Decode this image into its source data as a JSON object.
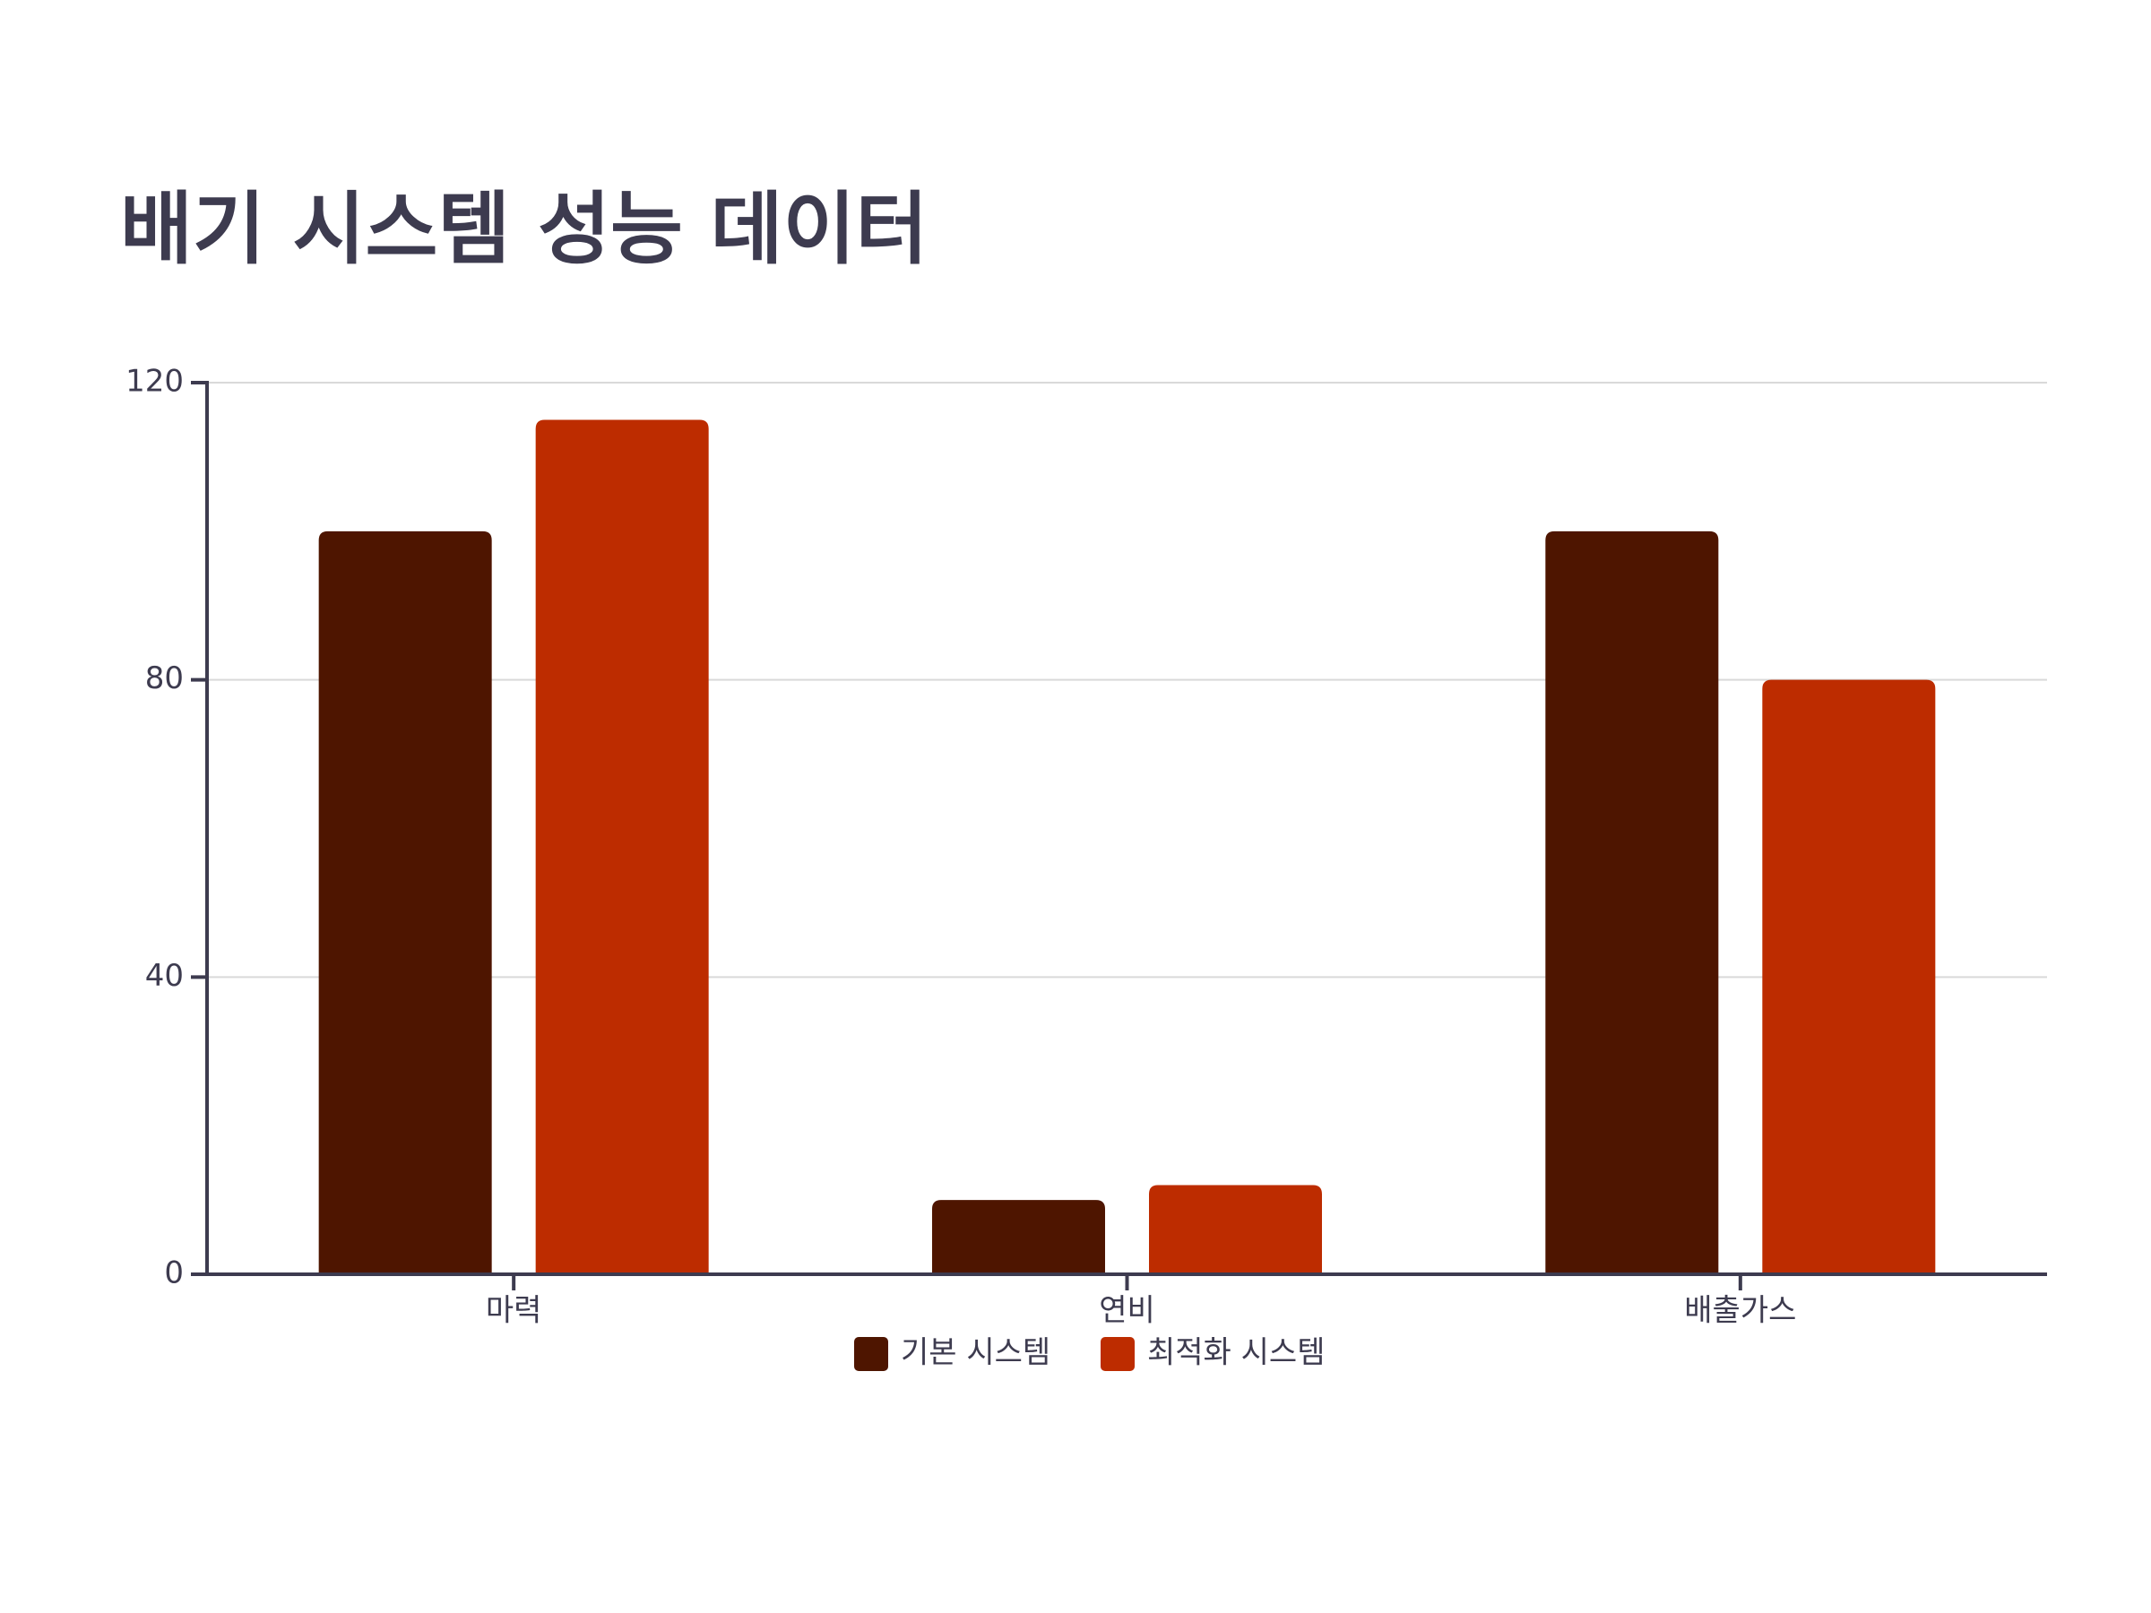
{
  "chart_data": {
    "type": "bar",
    "title": "배기 시스템 성능 데이터",
    "categories": [
      "마력",
      "연비",
      "배출가스"
    ],
    "series": [
      {
        "name": "기본 시스템",
        "color": "#4e1500",
        "values": [
          100,
          10,
          100
        ]
      },
      {
        "name": "최적화 시스템",
        "color": "#bd2c00",
        "values": [
          115,
          12,
          80
        ]
      }
    ],
    "ylim": [
      0,
      120
    ],
    "yticks": [
      0,
      40,
      80,
      120
    ],
    "grid": true,
    "legend": "bottom"
  }
}
